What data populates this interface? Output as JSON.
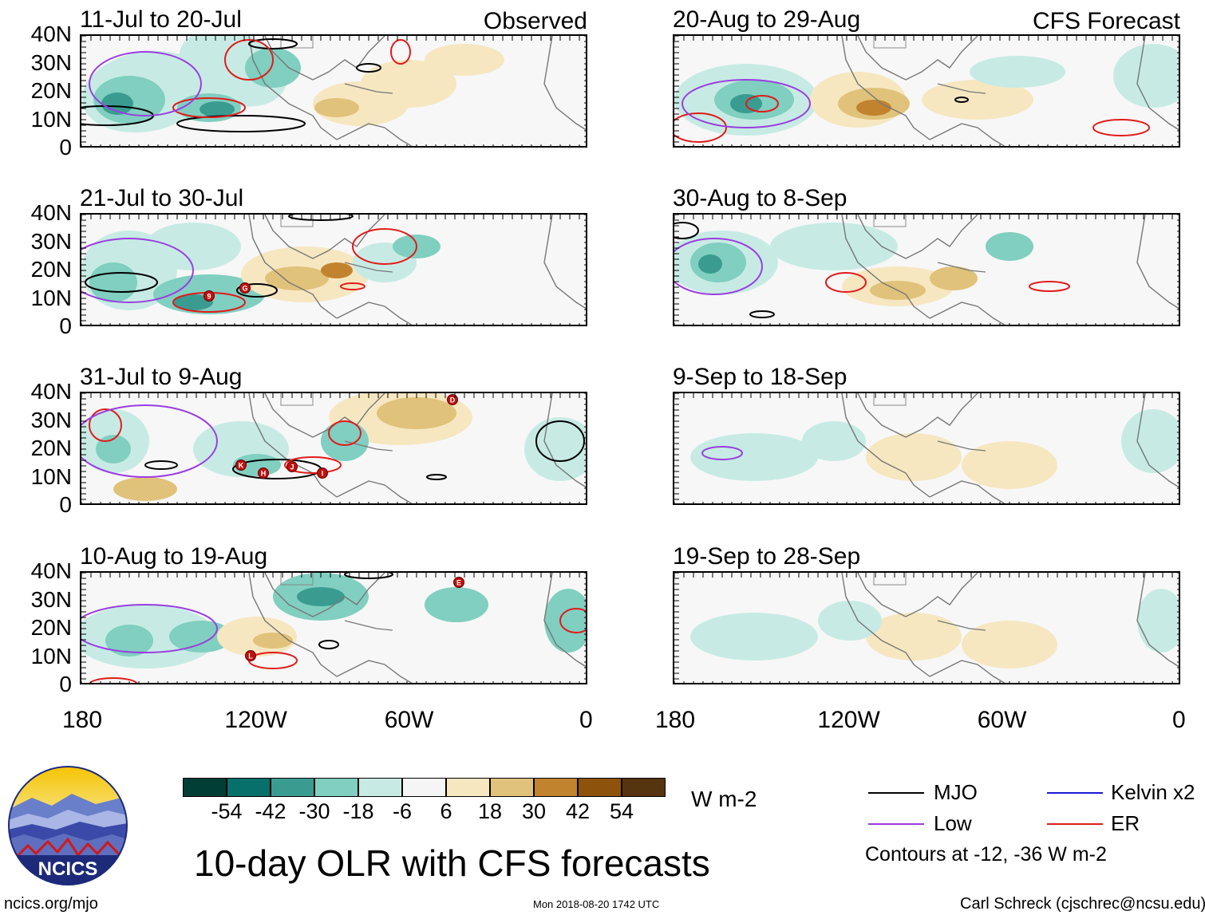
{
  "panels": [
    {
      "title": "11-Jul to 20-Jul",
      "label": "Observed"
    },
    {
      "title": "20-Aug to 29-Aug",
      "label": "CFS Forecast"
    },
    {
      "title": "21-Jul to 30-Jul",
      "label": ""
    },
    {
      "title": "30-Aug to 8-Sep",
      "label": ""
    },
    {
      "title": "31-Jul to 9-Aug",
      "label": ""
    },
    {
      "title": "9-Sep to 18-Sep",
      "label": ""
    },
    {
      "title": "10-Aug to 19-Aug",
      "label": ""
    },
    {
      "title": "19-Sep to 28-Sep",
      "label": ""
    }
  ],
  "y_ticks": [
    "40N",
    "30N",
    "20N",
    "10N",
    "0"
  ],
  "x_ticks": [
    "180",
    "120W",
    "60W",
    "0"
  ],
  "colorbar": {
    "colors": [
      "#013f36",
      "#08706a",
      "#3a9c91",
      "#80cfc0",
      "#c7ebe4",
      "#f5f5f5",
      "#f6e7c1",
      "#e0c27a",
      "#c1832d",
      "#8d520b",
      "#553410"
    ],
    "labels": [
      "-54",
      "-42",
      "-30",
      "-18",
      "-6",
      "6",
      "18",
      "30",
      "42",
      "54"
    ],
    "unit": "W m-2"
  },
  "legend": {
    "items": [
      {
        "label": "MJO",
        "color": "#000000"
      },
      {
        "label": "Kelvin x2",
        "color": "#1a1ad6"
      },
      {
        "label": "Low",
        "color": "#9a3ee0"
      },
      {
        "label": "ER",
        "color": "#e01b1b"
      }
    ],
    "note": "Contours at -12, -36 W m-2"
  },
  "storm_markers": [
    "9",
    "G",
    "K",
    "H",
    "J",
    "I",
    "D",
    "E",
    "L"
  ],
  "logo_text": "NCICS",
  "main_title": "10-day OLR with CFS forecasts",
  "footer": {
    "left": "ncics.org/mjo",
    "center": "Mon 2018-08-20 1742 UTC",
    "right": "Carl Schreck (cjschrec@ncsu.edu)"
  }
}
